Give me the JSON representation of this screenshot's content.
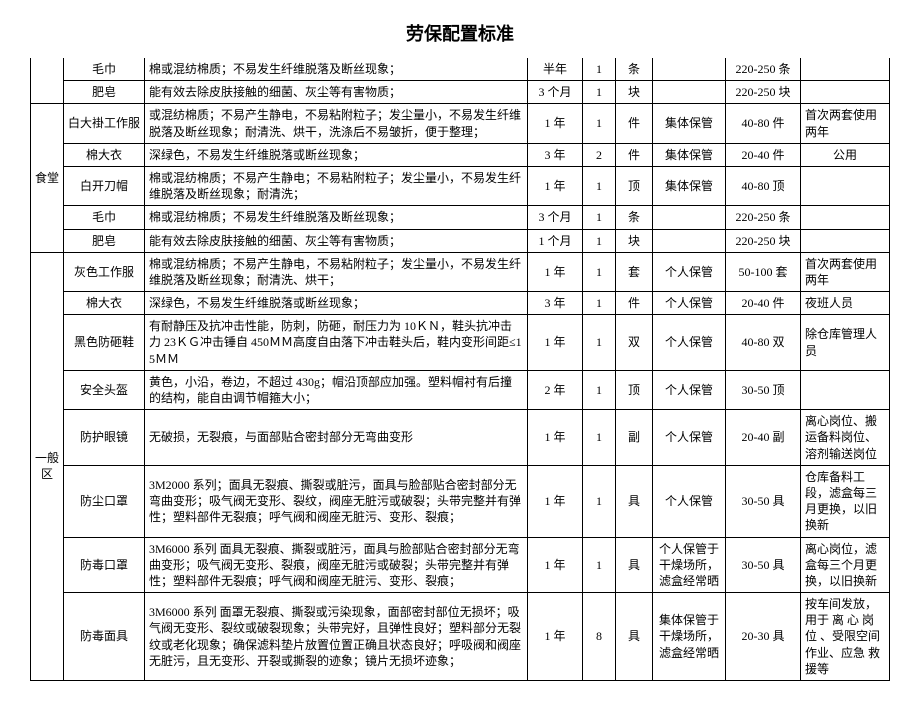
{
  "title": "劳保配置标准",
  "groups": [
    {
      "name": "",
      "rows": [
        {
          "item": "毛巾",
          "desc": "棉或混纺棉质；不易发生纤维脱落及断丝现象；",
          "cycle": "半年",
          "qty": "1",
          "unit": "条",
          "storage": "",
          "spec": "220-250 条",
          "remark": ""
        },
        {
          "item": "肥皂",
          "desc": "能有效去除皮肤接触的细菌、灰尘等有害物质；",
          "cycle": "3 个月",
          "qty": "1",
          "unit": "块",
          "storage": "",
          "spec": "220-250 块",
          "remark": ""
        }
      ]
    },
    {
      "name": "食堂",
      "rows": [
        {
          "item": "白大褂工作服",
          "desc": "或混纺棉质；不易产生静电，不易粘附粒子；发尘量小，不易发生纤维脱落及断丝现象；耐清洗、烘干，洗涤后不易皱折，便于整理；",
          "cycle": "1 年",
          "qty": "1",
          "unit": "件",
          "storage": "集体保管",
          "spec": "40-80 件",
          "remark": "首次两套使用两年"
        },
        {
          "item": "棉大衣",
          "desc": "深绿色，不易发生纤维脱落或断丝现象；",
          "cycle": "3 年",
          "qty": "2",
          "unit": "件",
          "storage": "集体保管",
          "spec": "20-40 件",
          "remark": "公用",
          "remarkCenter": true
        },
        {
          "item": "白开刀帽",
          "desc": "棉或混纺棉质；不易产生静电；不易粘附粒子；发尘量小，不易发生纤维脱落及断丝现象；耐清洗；",
          "cycle": "1 年",
          "qty": "1",
          "unit": "顶",
          "storage": "集体保管",
          "spec": "40-80 顶",
          "remark": ""
        },
        {
          "item": "毛巾",
          "desc": "棉或混纺棉质；不易发生纤维脱落及断丝现象；",
          "cycle": "3 个月",
          "qty": "1",
          "unit": "条",
          "storage": "",
          "spec": "220-250 条",
          "remark": ""
        },
        {
          "item": "肥皂",
          "desc": "能有效去除皮肤接触的细菌、灰尘等有害物质；",
          "cycle": "1 个月",
          "qty": "1",
          "unit": "块",
          "storage": "",
          "spec": "220-250 块",
          "remark": ""
        }
      ]
    },
    {
      "name": "一般区",
      "rows": [
        {
          "item": "灰色工作服",
          "desc": "棉或混纺棉质；不易产生静电，不易粘附粒子；发尘量小，不易发生纤维脱落及断丝现象；耐清洗、烘干；",
          "cycle": "1 年",
          "qty": "1",
          "unit": "套",
          "storage": "个人保管",
          "spec": "50-100 套",
          "remark": "首次两套使用两年"
        },
        {
          "item": "棉大衣",
          "desc": "深绿色，不易发生纤维脱落或断丝现象；",
          "cycle": "3 年",
          "qty": "1",
          "unit": "件",
          "storage": "个人保管",
          "spec": "20-40 件",
          "remark": "夜班人员"
        },
        {
          "item": "黑色防砸鞋",
          "desc": "有耐静压及抗冲击性能，防刺，防砸，耐压力为 10ＫＮ，鞋头抗冲击力 23ＫＧ冲击锤自 450ＭＭ高度自由落下冲击鞋头后，鞋内变形间距≤15ＭＭ",
          "cycle": "1 年",
          "qty": "1",
          "unit": "双",
          "storage": "个人保管",
          "spec": "40-80 双",
          "remark": "除仓库管理人员"
        },
        {
          "item": "安全头盔",
          "desc": "黄色，小沿，卷边，不超过 430g；帽沿顶部应加强。塑料帽衬有后撞的结构，能自由调节帽箍大小；",
          "cycle": "2 年",
          "qty": "1",
          "unit": "顶",
          "storage": "个人保管",
          "spec": "30-50 顶",
          "remark": ""
        },
        {
          "item": "防护眼镜",
          "desc": "无破损，无裂痕，与面部贴合密封部分无弯曲变形",
          "cycle": "1 年",
          "qty": "1",
          "unit": "副",
          "storage": "个人保管",
          "spec": "20-40 副",
          "remark": "离心岗位、搬运备料岗位、溶剂输送岗位"
        },
        {
          "item": "防尘口罩",
          "desc": "3M2000 系列；面具无裂痕、撕裂或脏污，面具与脸部贴合密封部分无弯曲变形；吸气阀无变形、裂纹，阀座无脏污或破裂；头带完整并有弹性；塑料部件无裂痕；呼气阀和阀座无脏污、变形、裂痕；",
          "cycle": "1 年",
          "qty": "1",
          "unit": "具",
          "storage": "个人保管",
          "spec": "30-50 具",
          "remark": "仓库备料工段，滤盒每三月更换，以旧换新"
        },
        {
          "item": "防毒口罩",
          "desc": "3M6000 系列 面具无裂痕、撕裂或脏污，面具与脸部贴合密封部分无弯曲变形；吸气阀无变形、裂痕，阀座无脏污或破裂；头带完整并有弹性；塑料部件无裂痕；呼气阀和阀座无脏污、变形、裂痕；",
          "cycle": "1 年",
          "qty": "1",
          "unit": "具",
          "storage": "个人保管于干燥场所，滤盒经常晒",
          "spec": "30-50 具",
          "remark": "离心岗位，滤盒每三个月更换，以旧换新"
        },
        {
          "item": "防毒面具",
          "desc": "3M6000 系列 面罩无裂痕、撕裂或污染现象，面部密封部位无损坏；吸气阀无变形、裂纹或破裂现象；头带完好，且弹性良好；塑料部分无裂纹或老化现象；确保滤料垫片放置位置正确且状态良好；呼吸阀和阀座无脏污，且无变形、开裂或撕裂的迹象；镜片无损坏迹象；",
          "cycle": "1 年",
          "qty": "8",
          "unit": "具",
          "storage": "集体保管于干燥场所，滤盒经常晒",
          "spec": "20-30 具",
          "remark": "按车间发放，用于 离 心 岗 位 、受限空间作业、应急 救 援等"
        }
      ]
    }
  ]
}
